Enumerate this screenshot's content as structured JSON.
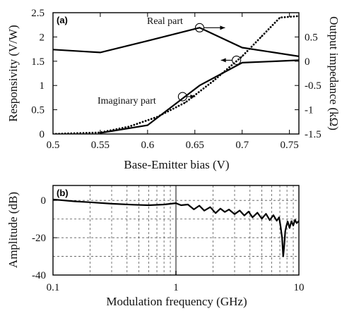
{
  "chart_data": [
    {
      "type": "line",
      "panel_label": "(a)",
      "xlabel": "Base-Emitter bias (V)",
      "ylabel": "Responsivity (V/W)",
      "y2label": "Output impedance (kΩ)",
      "xlim": [
        0.5,
        0.76
      ],
      "ylim": [
        0,
        2.5
      ],
      "y2lim": [
        -1.5,
        1.0
      ],
      "xticks": [
        "0.5",
        "0.55",
        "0.6",
        "0.65",
        "0.7",
        "0.75"
      ],
      "yticks": [
        "0",
        "0.5",
        "1",
        "1.5",
        "2",
        "2.5"
      ],
      "y2ticks": [
        "-1.5",
        "-1",
        "-0.5",
        "0",
        "0.5"
      ],
      "grid": false,
      "series": [
        {
          "name": "Responsivity",
          "axis": "left",
          "style": "solid",
          "x": [
            0.5,
            0.55,
            0.6,
            0.655,
            0.7,
            0.76
          ],
          "y": [
            1.74,
            1.68,
            1.92,
            2.19,
            1.78,
            1.6
          ]
        },
        {
          "name": "Real part",
          "axis": "right",
          "style": "solid",
          "x": [
            0.55,
            0.6,
            0.655,
            0.7,
            0.76
          ],
          "y": [
            -1.48,
            -1.32,
            -0.5,
            -0.03,
            0.02
          ]
        },
        {
          "name": "Imaginary part",
          "axis": "right",
          "style": "dotted",
          "x": [
            0.5,
            0.55,
            0.58,
            0.61,
            0.64,
            0.67,
            0.7,
            0.72,
            0.74,
            0.76
          ],
          "y": [
            -1.5,
            -1.47,
            -1.35,
            -1.15,
            -0.85,
            -0.4,
            0.1,
            0.5,
            0.9,
            0.93
          ]
        }
      ],
      "annotations": [
        {
          "text": "Real part"
        },
        {
          "text": "Imaginary part"
        }
      ]
    },
    {
      "type": "line",
      "panel_label": "(b)",
      "xlabel": "Modulation frequency (GHz)",
      "ylabel": "Amplitude (dB)",
      "xscale": "log",
      "xlim": [
        0.1,
        10
      ],
      "ylim": [
        -40,
        8
      ],
      "xticks": [
        "0.1",
        "1",
        "10"
      ],
      "yticks": [
        "0",
        "-20",
        "-40"
      ],
      "grid": true,
      "series": [
        {
          "x": [
            0.1,
            0.15,
            0.2,
            0.3,
            0.45,
            0.6,
            0.8,
            1.0,
            1.1,
            1.25,
            1.4,
            1.55,
            1.7,
            1.9,
            2.1,
            2.3,
            2.5,
            2.7,
            3.0,
            3.3,
            3.6,
            3.9,
            4.2,
            4.6,
            5.0,
            5.4,
            5.8,
            6.2,
            6.6,
            6.9,
            7.1,
            7.3,
            7.45,
            7.6,
            7.75,
            7.9,
            8.1,
            8.4,
            8.7,
            9.0,
            9.3,
            9.6,
            10.0
          ],
          "y": [
            0.5,
            -0.5,
            -1.0,
            -1.8,
            -2.3,
            -2.6,
            -2.2,
            -1.5,
            -2.6,
            -2.2,
            -4.8,
            -2.8,
            -5.5,
            -3.6,
            -6.8,
            -4.4,
            -6.2,
            -4.9,
            -7.4,
            -5.4,
            -8.1,
            -6.0,
            -9.1,
            -6.6,
            -9.8,
            -7.2,
            -10.6,
            -7.9,
            -10.9,
            -9.1,
            -14.0,
            -20.0,
            -30.0,
            -24.0,
            -16.5,
            -13.8,
            -11.3,
            -14.8,
            -11.1,
            -13.5,
            -10.4,
            -12.2,
            -11.0
          ]
        }
      ],
      "vertical_marker_x": 1.0
    }
  ]
}
